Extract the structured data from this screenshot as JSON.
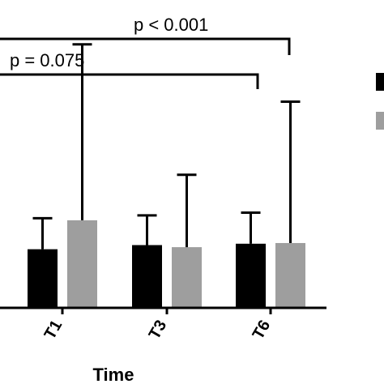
{
  "chart_data": {
    "type": "bar",
    "xlabel": "Time",
    "categories": [
      "T1",
      "T3",
      "T6"
    ],
    "series": [
      {
        "color": "#000000",
        "values": [
          0.85,
          0.91,
          0.93
        ],
        "error_plus": [
          0.45,
          0.43,
          0.45
        ]
      },
      {
        "color": "#9e9e9e",
        "values": [
          1.27,
          0.88,
          0.94
        ],
        "error_plus": [
          2.55,
          1.05,
          2.05
        ]
      }
    ],
    "ylim": [
      0,
      3.9
    ],
    "significance": [
      {
        "label": "p = 0.075"
      },
      {
        "label": "p < 0.001"
      }
    ]
  }
}
